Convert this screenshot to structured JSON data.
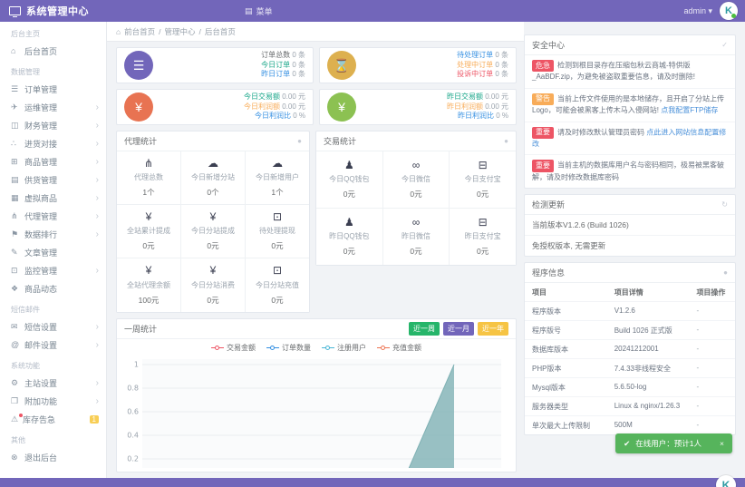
{
  "header": {
    "brand": "系统管理中心",
    "menu_glyph": "▤",
    "menu_label": "菜单",
    "user": "admin",
    "caret": "▾",
    "accent_color": "#7266ba",
    "logo_letter": "K"
  },
  "breadcrumb": {
    "home_glyph": "⌂",
    "separator": "/",
    "items": [
      "前台首页",
      "管理中心",
      "后台首页"
    ]
  },
  "sidebar": {
    "chevron": "›",
    "sections": [
      {
        "label": "后台主页",
        "items": [
          {
            "glyph": "⌂",
            "label": "后台首页"
          }
        ]
      },
      {
        "label": "数据管理",
        "items": [
          {
            "glyph": "☰",
            "label": "订单管理"
          },
          {
            "glyph": "✈",
            "label": "运维管理"
          },
          {
            "glyph": "◫",
            "label": "财务管理"
          },
          {
            "glyph": "∴",
            "label": "进货对接"
          },
          {
            "glyph": "⊞",
            "label": "商品管理"
          },
          {
            "glyph": "▤",
            "label": "供货管理"
          },
          {
            "glyph": "▦",
            "label": "虚拟商品"
          },
          {
            "glyph": "⋔",
            "label": "代理管理"
          },
          {
            "glyph": "⚑",
            "label": "数据排行"
          },
          {
            "glyph": "✎",
            "label": "文章管理"
          },
          {
            "glyph": "⊡",
            "label": "监控管理"
          },
          {
            "glyph": "❖",
            "label": "商品动态"
          }
        ]
      },
      {
        "label": "短信邮件",
        "items": [
          {
            "glyph": "✉",
            "label": "短信设置"
          },
          {
            "glyph": "@",
            "label": "邮件设置"
          }
        ]
      },
      {
        "label": "系统功能",
        "items": [
          {
            "glyph": "⚙",
            "label": "主站设置"
          },
          {
            "glyph": "❒",
            "label": "附加功能"
          },
          {
            "glyph": "⚠",
            "label": "库存告急",
            "badge": "1"
          }
        ]
      },
      {
        "label": "其他",
        "items": [
          {
            "glyph": "⊗",
            "label": "退出后台"
          }
        ]
      }
    ]
  },
  "stat_cards": [
    {
      "glyph": "☰",
      "circle_color": "#7266ba",
      "lines": [
        {
          "label": "订单总数",
          "value": " 0 条",
          "color": "#676a6c"
        },
        {
          "label": "今日订单",
          "value": " 0 条",
          "color": "#18a689"
        },
        {
          "label": "昨日订单",
          "value": " 0 条",
          "color": "#348fe2"
        }
      ]
    },
    {
      "glyph": "⌛",
      "circle_color": "#ddb04f",
      "lines": [
        {
          "label": "待处理订单",
          "value": " 0 条",
          "color": "#348fe2"
        },
        {
          "label": "处理中订单",
          "value": " 0 条",
          "color": "#f8ac59"
        },
        {
          "label": "投诉中订单",
          "value": " 0 条",
          "color": "#ed5565"
        }
      ]
    },
    {
      "glyph": "¥",
      "circle_color": "#e87352",
      "lines": [
        {
          "label": "今日交易额",
          "value": " 0.00 元",
          "color": "#18a689"
        },
        {
          "label": "今日利润额",
          "value": " 0.00 元",
          "color": "#f8ac59"
        },
        {
          "label": "今日利润比",
          "value": " 0 %",
          "color": "#348fe2"
        }
      ]
    },
    {
      "glyph": "¥",
      "circle_color": "#8cc152",
      "lines": [
        {
          "label": "昨日交易额",
          "value": " 0.00 元",
          "color": "#18a689"
        },
        {
          "label": "昨日利润额",
          "value": " 0.00 元",
          "color": "#f8ac59"
        },
        {
          "label": "昨日利润比",
          "value": " 0 %",
          "color": "#348fe2"
        }
      ]
    }
  ],
  "agent_stats": {
    "title": "代理统计",
    "corner_glyph": "●",
    "cells": [
      {
        "glyph": "⋔",
        "label": "代理总数",
        "value": "1个"
      },
      {
        "glyph": "☁",
        "label": "今日新增分站",
        "value": "0个"
      },
      {
        "glyph": "☁",
        "label": "今日新增用户",
        "value": "1个"
      },
      {
        "glyph": "¥",
        "label": "全站累计提成",
        "value": "0元"
      },
      {
        "glyph": "¥",
        "label": "今日分站提成",
        "value": "0元"
      },
      {
        "glyph": "⊡",
        "label": "待处理提现",
        "value": "0元"
      },
      {
        "glyph": "¥",
        "label": "全站代理余额",
        "value": "100元"
      },
      {
        "glyph": "¥",
        "label": "今日分站消费",
        "value": "0元"
      },
      {
        "glyph": "⊡",
        "label": "今日分站充值",
        "value": "0元"
      }
    ]
  },
  "trade_stats": {
    "title": "交易统计",
    "corner_glyph": "●",
    "cells": [
      {
        "glyph": "♟",
        "label": "今日QQ钱包",
        "value": "0元"
      },
      {
        "glyph": "∞",
        "label": "今日微信",
        "value": "0元"
      },
      {
        "glyph": "⊟",
        "label": "今日支付宝",
        "value": "0元"
      },
      {
        "glyph": "♟",
        "label": "昨日QQ钱包",
        "value": "0元"
      },
      {
        "glyph": "∞",
        "label": "昨日微信",
        "value": "0元"
      },
      {
        "glyph": "⊟",
        "label": "昨日支付宝",
        "value": "0元"
      }
    ]
  },
  "security": {
    "title": "安全中心",
    "corner_glyph": "✓",
    "alerts": [
      {
        "level": "危急",
        "level_color": "#ed5565",
        "text": "检测到根目录存在压缩包秋云商城-特供版_AaBDF.zip，为避免被盗取重要信息，请及时删除!",
        "link": ""
      },
      {
        "level": "警告",
        "level_color": "#f8ac59",
        "text": "当前上传文件使用的是本地储存，且开启了分站上传Logo，可能会被黑客上传木马入侵网站! ",
        "link": "点我配置FTP储存"
      },
      {
        "level": "重要",
        "level_color": "#ed5565",
        "text": "请及时修改默认管理员密码 ",
        "link": "点此进入网站信息配置修改"
      },
      {
        "level": "重要",
        "level_color": "#ed5565",
        "text": "当前主机的数据库用户名与密码相同，极易被黑客破解，请及时修改数据库密码",
        "link": ""
      }
    ]
  },
  "update_panel": {
    "title": "检测更新",
    "corner_glyph": "↻",
    "lines": [
      "当前版本V1.2.6 (Build 1026)",
      "免授权版本, 无需更新"
    ]
  },
  "program_info": {
    "title": "程序信息",
    "corner_glyph": "●",
    "headers": [
      "项目",
      "项目详情",
      "项目操作"
    ],
    "rows": [
      [
        "程序版本",
        "V1.2.6",
        "-"
      ],
      [
        "程序版号",
        "Build 1026 正式版",
        "-"
      ],
      [
        "数据库版本",
        "20241212001",
        "-"
      ],
      [
        "PHP版本",
        "7.4.33非线程安全",
        "-"
      ],
      [
        "Mysql版本",
        "5.6.50-log",
        "-"
      ],
      [
        "服务器类型",
        "Linux & nginx/1.26.3",
        "-"
      ],
      [
        "单次最大上传限制",
        "500M",
        "-"
      ]
    ]
  },
  "week_chart": {
    "title": "一周统计",
    "buttons": [
      {
        "label": "近一周",
        "color": "#26b56a"
      },
      {
        "label": "近一月",
        "color": "#7266ba"
      },
      {
        "label": "近一年",
        "color": "#f6c444"
      }
    ],
    "legend": [
      {
        "label": "交易金额",
        "color": "#ed5565"
      },
      {
        "label": "订单数量",
        "color": "#348fe2"
      },
      {
        "label": "注册用户",
        "color": "#49b6d6"
      },
      {
        "label": "充值金额",
        "color": "#ed7453"
      }
    ],
    "chart_data": {
      "type": "area",
      "categories": [
        "",
        "",
        "",
        "",
        "",
        "",
        ""
      ],
      "series": [
        {
          "name": "交易金额",
          "color": "#ed5565",
          "values": [
            0,
            0,
            0,
            0,
            0,
            0,
            0
          ]
        },
        {
          "name": "订单数量",
          "color": "#348fe2",
          "values": [
            0,
            0,
            0,
            0,
            0,
            0,
            0
          ]
        },
        {
          "name": "注册用户",
          "color": "#7fb1b4",
          "values": [
            0,
            0,
            0,
            0,
            0,
            0,
            1
          ]
        },
        {
          "name": "充值金额",
          "color": "#ed7453",
          "values": [
            0,
            0,
            0,
            0,
            0,
            0,
            0
          ]
        }
      ],
      "ylim": [
        0,
        1
      ],
      "y_ticks": [
        1,
        0.8,
        0.6,
        0.4,
        0.2
      ],
      "grid": true,
      "legend_position": "top"
    }
  },
  "toast": {
    "check_glyph": "✔",
    "text": "在线用户：预计1人",
    "close_glyph": "×",
    "color": "#56b45c"
  }
}
